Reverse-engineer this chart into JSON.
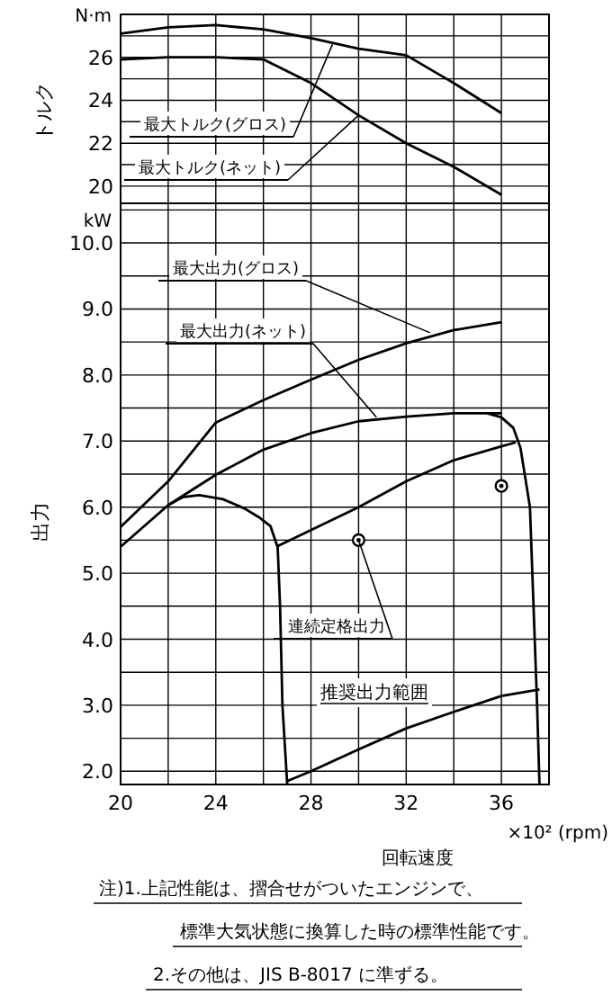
{
  "chart_data": [
    {
      "type": "line",
      "ylabel": "トルク",
      "xlim": [
        20,
        38
      ],
      "ylim": [
        19.2,
        28
      ],
      "xticks": [
        20,
        {
          "value": 22,
          "label": null
        },
        24,
        {
          "value": 26,
          "label": null
        },
        28,
        {
          "value": 30,
          "label": null
        },
        32,
        {
          "value": 34,
          "label": null
        },
        36
      ],
      "yticks": [
        20,
        {
          "value": 21,
          "label": null
        },
        22,
        {
          "value": 23,
          "label": null
        },
        24,
        {
          "value": 25,
          "label": null
        },
        26,
        {
          "value": 27,
          "label": null
        }
      ],
      "tick_labels": "y",
      "grid": true,
      "series": [
        {
          "color": "#000000",
          "x": [
            20,
            22,
            24,
            26,
            28,
            30,
            32,
            34,
            36
          ],
          "values": [
            27.1,
            27.4,
            27.5,
            27.3,
            26.9,
            26.4,
            26.1,
            24.8,
            23.4
          ]
        },
        {
          "color": "#000000",
          "x": [
            20,
            22,
            24,
            26,
            28,
            30,
            32,
            34,
            36
          ],
          "values": [
            25.9,
            26.0,
            26.0,
            25.9,
            24.8,
            23.3,
            22.0,
            20.9,
            19.6
          ]
        }
      ],
      "annotations": [
        "N·m",
        {
          "text": "最大トルク(グロス)",
          "x": 28.9,
          "y": 26.6
        },
        {
          "text": "最大トルク(ネット)",
          "x": 30,
          "y": 23.3
        }
      ]
    },
    {
      "type": "line",
      "ylabel": "出力",
      "xlabel": "回転速度",
      "xlim": [
        20,
        38
      ],
      "ylim": [
        1.8,
        10.6
      ],
      "xticks": [
        20,
        {
          "value": 22,
          "label": null
        },
        24,
        {
          "value": 26,
          "label": null
        },
        28,
        {
          "value": 30,
          "label": null
        },
        32,
        {
          "value": 34,
          "label": null
        },
        36
      ],
      "yticks": [
        {
          "value": 2,
          "label": "2.0"
        },
        {
          "value": 2.5,
          "label": null
        },
        {
          "value": 3,
          "label": "3.0"
        },
        {
          "value": 3.5,
          "label": null
        },
        {
          "value": 4,
          "label": "4.0"
        },
        {
          "value": 4.5,
          "label": null
        },
        {
          "value": 5,
          "label": "5.0"
        },
        {
          "value": 5.5,
          "label": null
        },
        {
          "value": 6,
          "label": "6.0"
        },
        {
          "value": 6.5,
          "label": null
        },
        {
          "value": 7,
          "label": "7.0"
        },
        {
          "value": 7.5,
          "label": null
        },
        {
          "value": 8,
          "label": "8.0"
        },
        {
          "value": 8.5,
          "label": null
        },
        {
          "value": 9,
          "label": "9.0"
        },
        {
          "value": 9.5,
          "label": null
        },
        {
          "value": 10,
          "label": "10.0"
        },
        {
          "value": 10.5,
          "label": null
        }
      ],
      "grid": true,
      "series": [
        {
          "color": "#000000",
          "x": [
            20,
            22,
            24,
            26,
            28,
            30,
            32,
            34,
            36
          ],
          "values": [
            5.7,
            6.39,
            7.28,
            7.62,
            7.93,
            8.23,
            8.48,
            8.68,
            8.8
          ]
        },
        {
          "color": "#000000",
          "x": [
            20,
            22,
            24,
            26,
            28,
            30,
            32,
            34,
            36
          ],
          "values": [
            5.4,
            6.03,
            6.49,
            6.87,
            7.12,
            7.3,
            7.37,
            7.42,
            7.42
          ]
        },
        {
          "color": "#000000",
          "x": [
            22,
            22.6,
            23.3,
            24.3,
            25.2,
            25.8,
            26.3,
            26.6,
            26.7,
            26.8,
            27.0
          ],
          "values": [
            6.03,
            6.15,
            6.18,
            6.12,
            5.98,
            5.85,
            5.71,
            5.39,
            4.5,
            3.0,
            1.8
          ]
        },
        {
          "color": "#000000",
          "x": [
            26.6,
            30,
            32,
            34,
            36,
            36.6
          ],
          "values": [
            5.41,
            6.0,
            6.39,
            6.71,
            6.92,
            6.98
          ]
        },
        {
          "color": "#000000",
          "x": [
            35.4,
            36,
            36.5,
            36.8,
            37,
            37.2,
            37.3,
            37.4,
            37.5,
            37.6
          ],
          "values": [
            7.42,
            7.36,
            7.2,
            6.9,
            6.45,
            6.0,
            5.0,
            4.0,
            3.0,
            1.8
          ]
        },
        {
          "color": "#000000",
          "x": [
            27,
            28,
            30,
            32,
            34,
            36,
            37.6
          ],
          "values": [
            1.85,
            2.0,
            2.33,
            2.65,
            2.9,
            3.14,
            3.24
          ]
        },
        {
          "type": "scatter",
          "marker": "circle",
          "color": "#000000",
          "x": [
            30,
            36
          ],
          "values": [
            5.5,
            6.32
          ]
        }
      ],
      "annotations": [
        "kW",
        "×10² (rpm)",
        "推奨出力範囲",
        {
          "text": "最大出力(グロス)",
          "x": 33,
          "y": 8.64
        },
        {
          "text": "最大出力(ネット)",
          "x": 30.75,
          "y": 7.36
        },
        {
          "text": "連続定格出力",
          "x": 30,
          "y": 5.5
        }
      ]
    },
    {
      "type": "other",
      "annotations": [
        "注)1.上記性能は、摺合せがついたエンジンで、",
        "標準大気状態に換算した時の標準性能です。",
        "2.その他は、JIS B-8017 に準ずる。"
      ]
    }
  ]
}
